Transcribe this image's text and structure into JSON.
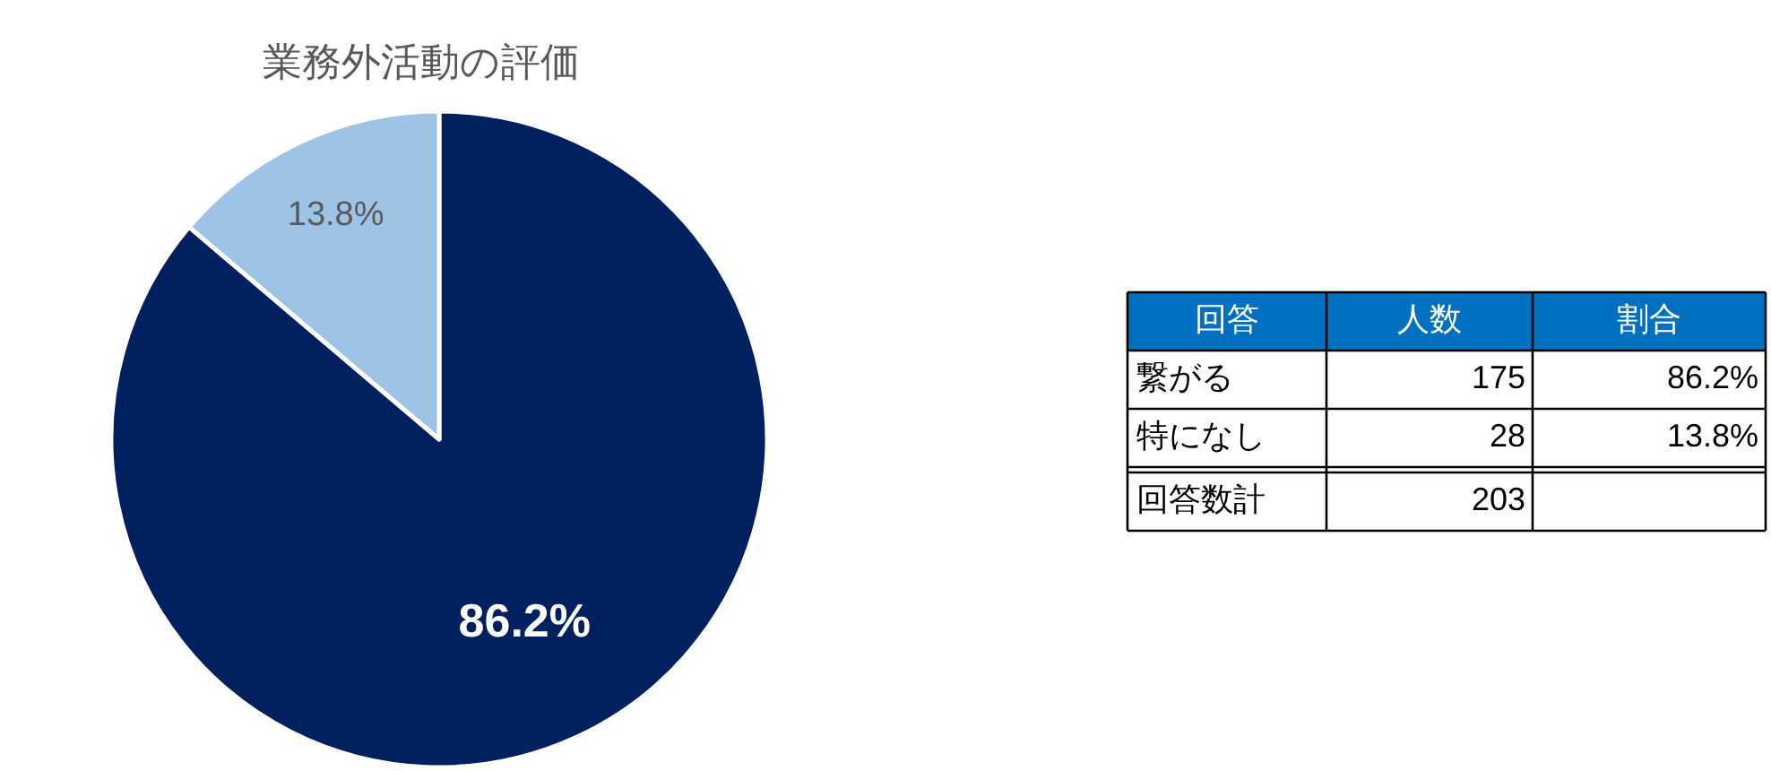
{
  "chart_data": {
    "type": "pie",
    "title": "業務外活動の評価",
    "categories": [
      null,
      null
    ],
    "values": [
      86.2,
      13.8
    ],
    "colors": [
      "#002060",
      "#9dc3e6"
    ],
    "value_labels": [
      "86.2%",
      "13.8%"
    ],
    "annotations": [
      "回答",
      "人数",
      "割合",
      "繋がる",
      "175",
      "特になし",
      "28",
      "回答数計",
      "203"
    ]
  }
}
